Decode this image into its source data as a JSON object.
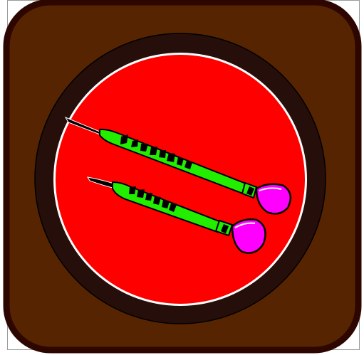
{
  "icon": {
    "name": "darts-icon",
    "colors": {
      "frame_border": "#2e0600",
      "frame_fill": "#562400",
      "board_ring": "#260f0a",
      "board_outline": "#ffffff",
      "board_face": "#ff0000",
      "barrel": "#22ee00",
      "flight": "#ff00ff",
      "ink": "#000000"
    },
    "dart_count": 2
  }
}
